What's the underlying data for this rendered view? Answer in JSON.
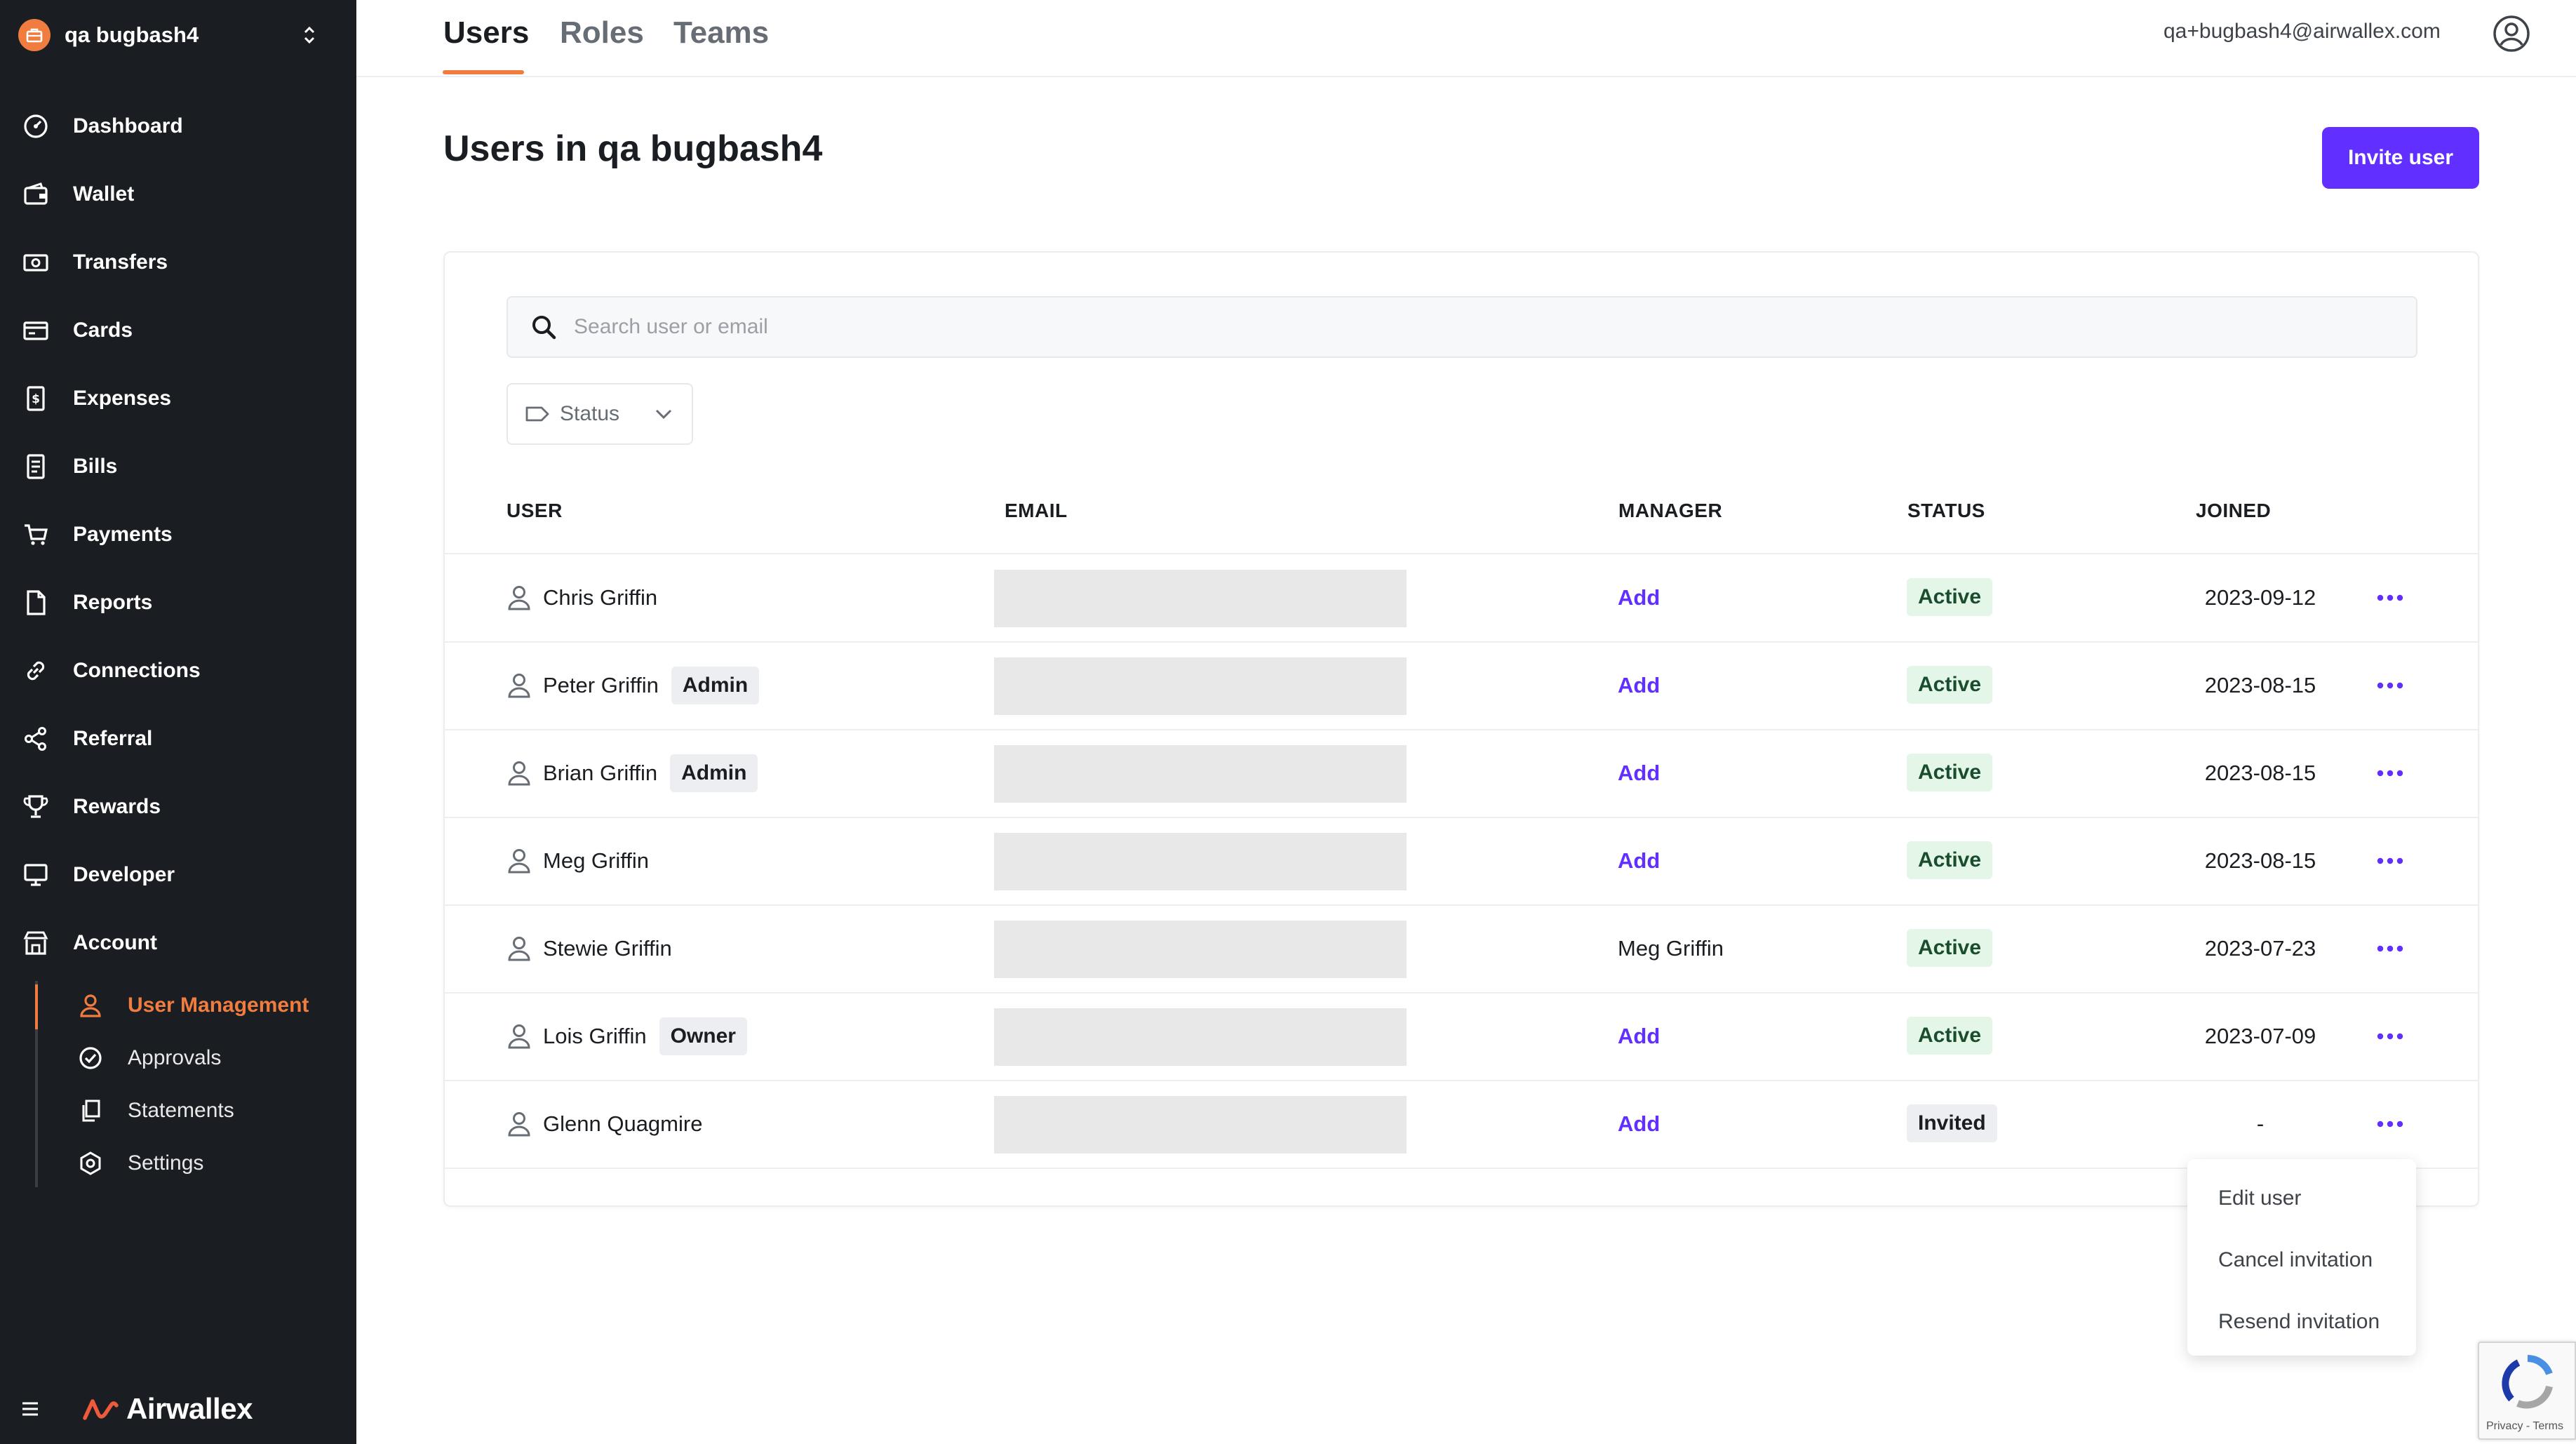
{
  "sidebar": {
    "org_name": "qa bugbash4",
    "items": [
      {
        "label": "Dashboard",
        "icon": "dashboard-icon"
      },
      {
        "label": "Wallet",
        "icon": "wallet-icon"
      },
      {
        "label": "Transfers",
        "icon": "transfers-icon"
      },
      {
        "label": "Cards",
        "icon": "card-icon"
      },
      {
        "label": "Expenses",
        "icon": "expenses-icon"
      },
      {
        "label": "Bills",
        "icon": "bills-icon"
      },
      {
        "label": "Payments",
        "icon": "cart-icon"
      },
      {
        "label": "Reports",
        "icon": "reports-icon"
      },
      {
        "label": "Connections",
        "icon": "link-icon"
      },
      {
        "label": "Referral",
        "icon": "share-icon"
      },
      {
        "label": "Rewards",
        "icon": "trophy-icon"
      },
      {
        "label": "Developer",
        "icon": "monitor-icon"
      },
      {
        "label": "Account",
        "icon": "store-icon"
      }
    ],
    "sub_items": [
      {
        "label": "User Management",
        "icon": "user-icon",
        "active": true
      },
      {
        "label": "Approvals",
        "icon": "check-circle-icon",
        "active": false
      },
      {
        "label": "Statements",
        "icon": "statements-icon",
        "active": false
      },
      {
        "label": "Settings",
        "icon": "gear-icon",
        "active": false
      }
    ],
    "brand": "Airwallex"
  },
  "header": {
    "tabs": [
      {
        "label": "Users",
        "active": true
      },
      {
        "label": "Roles",
        "active": false
      },
      {
        "label": "Teams",
        "active": false
      }
    ],
    "user_email": "qa+bugbash4@airwallex.com"
  },
  "main": {
    "title": "Users in qa bugbash4",
    "invite_button": "Invite user",
    "search_placeholder": "Search user or email",
    "status_filter_label": "Status",
    "columns": {
      "user": "USER",
      "email": "EMAIL",
      "manager": "MANAGER",
      "status": "STATUS",
      "joined": "JOINED"
    },
    "rows": [
      {
        "name": "Chris Griffin",
        "role": "",
        "manager": "Add",
        "status": "Active",
        "joined": "2023-09-12"
      },
      {
        "name": "Peter Griffin",
        "role": "Admin",
        "manager": "Add",
        "status": "Active",
        "joined": "2023-08-15"
      },
      {
        "name": "Brian Griffin",
        "role": "Admin",
        "manager": "Add",
        "status": "Active",
        "joined": "2023-08-15"
      },
      {
        "name": "Meg Griffin",
        "role": "",
        "manager": "Add",
        "status": "Active",
        "joined": "2023-08-15"
      },
      {
        "name": "Stewie Griffin",
        "role": "",
        "manager": "Meg Griffin",
        "status": "Active",
        "joined": "2023-07-23"
      },
      {
        "name": "Lois Griffin",
        "role": "Owner",
        "manager": "Add",
        "status": "Active",
        "joined": "2023-07-09"
      },
      {
        "name": "Glenn Quagmire",
        "role": "",
        "manager": "Add",
        "status": "Invited",
        "joined": "-"
      }
    ]
  },
  "context_menu": {
    "items": [
      "Edit user",
      "Cancel invitation",
      "Resend invitation"
    ]
  },
  "recaptcha": {
    "text": "Privacy - Terms"
  },
  "colors": {
    "sidebar_bg": "#1a1d21",
    "accent_orange": "#f07d3f",
    "primary_purple": "#612fff",
    "active_badge_bg": "#e3f6e8"
  }
}
